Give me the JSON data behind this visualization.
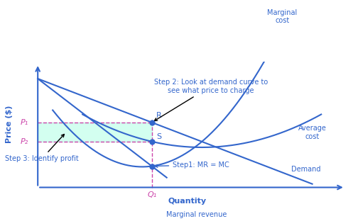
{
  "fig_width": 4.97,
  "fig_height": 3.12,
  "dpi": 100,
  "bg_color": "#ffffff",
  "curve_color": "#3366cc",
  "profit_fill_color": "#ccffee",
  "dashed_color": "#cc44aa",
  "xlabel": "Quantity",
  "ylabel": "Price ($)",
  "annotations": {
    "step2": "Step 2: Look at demand curve to\nsee what price to charge",
    "step3": "Step 3: Identify profit",
    "step1": "Step1: MR = MC",
    "R": "R",
    "S": "S",
    "Q1_label": "Q₁",
    "P1_label": "P₁",
    "P2_label": "P₂",
    "marginal_cost": "Marginal\ncost",
    "average_cost": "Average\ncost",
    "demand": "Demand",
    "marginal_revenue": "Marginal revenue"
  }
}
